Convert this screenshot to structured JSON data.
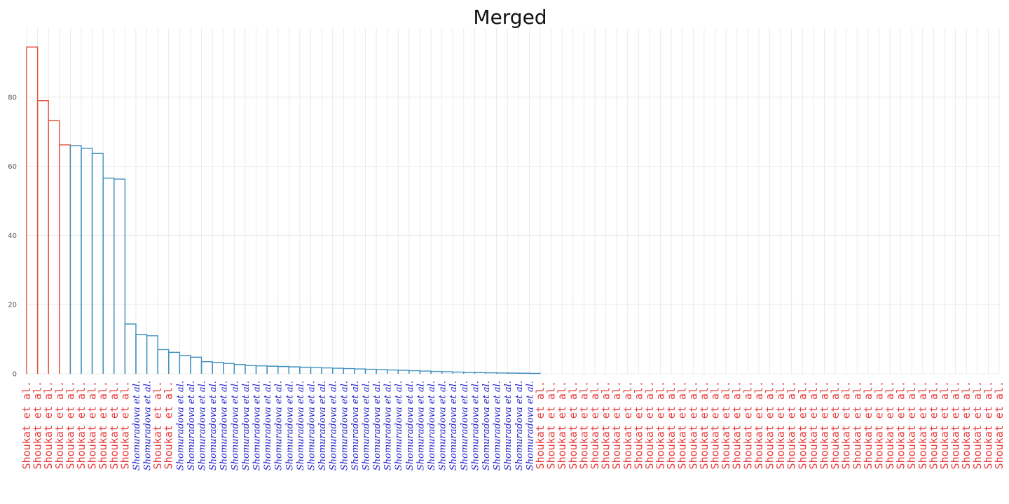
{
  "chart_data": {
    "type": "dendrogram",
    "title": "Merged",
    "y_ticks": [
      0,
      20,
      40,
      60,
      80
    ],
    "ylim": [
      0,
      100
    ],
    "grid": true,
    "colors": {
      "top_cluster": "#e0533f",
      "main_cluster": "#3f8fbf",
      "label_shoukat": "#e8393a",
      "label_shomuradova": "#1a1acc",
      "grid": "#e6e6e6"
    },
    "labels": {
      "shoukat": "Shoukat et al.",
      "shomuradova": "Shomuradova et al."
    },
    "leaves": [
      "Shoukat et al.",
      "Shoukat et al.",
      "Shoukat et al.",
      "Shoukat et al.",
      "Shoukat et al.",
      "Shoukat et al.",
      "Shoukat et al.",
      "Shoukat et al.",
      "Shoukat et al.",
      "Shoukat et al.",
      "Shomuradova et al.",
      "Shomuradova et al.",
      "Shoukat et al.",
      "Shoukat et al.",
      "Shomuradova et al.",
      "Shomuradova et al.",
      "Shomuradova et al.",
      "Shomuradova et al.",
      "Shomuradova et al.",
      "Shomuradova et al.",
      "Shomuradova et al.",
      "Shomuradova et al.",
      "Shomuradova et al.",
      "Shomuradova et al.",
      "Shomuradova et al.",
      "Shomuradova et al.",
      "Shomuradova et al.",
      "Shomuradova et al.",
      "Shomuradova et al.",
      "Shomuradova et al.",
      "Shomuradova et al.",
      "Shomuradova et al.",
      "Shomuradova et al.",
      "Shomuradova et al.",
      "Shomuradova et al.",
      "Shomuradova et al.",
      "Shomuradova et al.",
      "Shomuradova et al.",
      "Shomuradova et al.",
      "Shomuradova et al.",
      "Shomuradova et al.",
      "Shomuradova et al.",
      "Shomuradova et al.",
      "Shomuradova et al.",
      "Shomuradova et al.",
      "Shomuradova et al.",
      "Shomuradova et al.",
      "Shoukat et al.",
      "Shoukat et al.",
      "Shoukat et al.",
      "Shoukat et al.",
      "Shoukat et al.",
      "Shoukat et al.",
      "Shoukat et al.",
      "Shoukat et al.",
      "Shoukat et al.",
      "Shoukat et al.",
      "Shoukat et al.",
      "Shoukat et al.",
      "Shoukat et al.",
      "Shoukat et al.",
      "Shoukat et al.",
      "Shoukat et al.",
      "Shoukat et al.",
      "Shoukat et al.",
      "Shoukat et al.",
      "Shoukat et al.",
      "Shoukat et al.",
      "Shoukat et al.",
      "Shoukat et al.",
      "Shoukat et al.",
      "Shoukat et al.",
      "Shoukat et al.",
      "Shoukat et al.",
      "Shoukat et al.",
      "Shoukat et al.",
      "Shoukat et al.",
      "Shoukat et al.",
      "Shoukat et al.",
      "Shoukat et al.",
      "Shoukat et al.",
      "Shoukat et al.",
      "Shoukat et al.",
      "Shoukat et al.",
      "Shoukat et al.",
      "Shoukat et al.",
      "Shoukat et al.",
      "Shoukat et al.",
      "Shoukat et al.",
      "Shoukat et al."
    ],
    "merges": [
      {
        "l": 0,
        "r": 1,
        "h": 94.5,
        "c": "top"
      },
      {
        "l": 1,
        "r": 2,
        "h": 79.0,
        "c": "top"
      },
      {
        "l": 2,
        "r": 3,
        "h": 73.2,
        "c": "top"
      },
      {
        "l": 3,
        "r": 4,
        "h": 66.2,
        "c": "top"
      },
      {
        "l": 4,
        "r": 5,
        "h": 66.0,
        "c": "main"
      },
      {
        "l": 5,
        "r": 6,
        "h": 65.2,
        "c": "main"
      },
      {
        "l": 6,
        "r": 7,
        "h": 63.7,
        "c": "main"
      },
      {
        "l": 7,
        "r": 8,
        "h": 56.6,
        "c": "main"
      },
      {
        "l": 8,
        "r": 9,
        "h": 56.3,
        "c": "main"
      },
      {
        "l": 9,
        "r": 10,
        "h": 14.4,
        "c": "main"
      },
      {
        "l": 10,
        "r": 11,
        "h": 11.4,
        "c": "main"
      },
      {
        "l": 11,
        "r": 12,
        "h": 11.0,
        "c": "main"
      },
      {
        "l": 12,
        "r": 13,
        "h": 7.0,
        "c": "main"
      },
      {
        "l": 13,
        "r": 14,
        "h": 6.2,
        "c": "main"
      },
      {
        "l": 14,
        "r": 15,
        "h": 5.3,
        "c": "main"
      },
      {
        "l": 15,
        "r": 16,
        "h": 4.8,
        "c": "main"
      },
      {
        "l": 16,
        "r": 17,
        "h": 3.5,
        "c": "main"
      },
      {
        "l": 17,
        "r": 18,
        "h": 3.3,
        "c": "main"
      },
      {
        "l": 18,
        "r": 19,
        "h": 3.0,
        "c": "main"
      },
      {
        "l": 19,
        "r": 20,
        "h": 2.7,
        "c": "main"
      },
      {
        "l": 20,
        "r": 21,
        "h": 2.4,
        "c": "main"
      },
      {
        "l": 21,
        "r": 22,
        "h": 2.3,
        "c": "main"
      },
      {
        "l": 22,
        "r": 23,
        "h": 2.2,
        "c": "main"
      },
      {
        "l": 23,
        "r": 24,
        "h": 2.1,
        "c": "main"
      },
      {
        "l": 24,
        "r": 25,
        "h": 2.0,
        "c": "main"
      },
      {
        "l": 25,
        "r": 26,
        "h": 1.9,
        "c": "main"
      },
      {
        "l": 26,
        "r": 27,
        "h": 1.8,
        "c": "main"
      },
      {
        "l": 27,
        "r": 28,
        "h": 1.7,
        "c": "main"
      },
      {
        "l": 28,
        "r": 29,
        "h": 1.6,
        "c": "main"
      },
      {
        "l": 29,
        "r": 30,
        "h": 1.5,
        "c": "main"
      },
      {
        "l": 30,
        "r": 31,
        "h": 1.4,
        "c": "main"
      },
      {
        "l": 31,
        "r": 32,
        "h": 1.3,
        "c": "main"
      },
      {
        "l": 32,
        "r": 33,
        "h": 1.2,
        "c": "main"
      },
      {
        "l": 33,
        "r": 34,
        "h": 1.1,
        "c": "main"
      },
      {
        "l": 34,
        "r": 35,
        "h": 1.0,
        "c": "main"
      },
      {
        "l": 35,
        "r": 36,
        "h": 0.9,
        "c": "main"
      },
      {
        "l": 36,
        "r": 37,
        "h": 0.8,
        "c": "main"
      },
      {
        "l": 37,
        "r": 38,
        "h": 0.7,
        "c": "main"
      },
      {
        "l": 38,
        "r": 39,
        "h": 0.6,
        "c": "main"
      },
      {
        "l": 39,
        "r": 40,
        "h": 0.5,
        "c": "main"
      },
      {
        "l": 40,
        "r": 41,
        "h": 0.4,
        "c": "main"
      },
      {
        "l": 41,
        "r": 42,
        "h": 0.35,
        "c": "main"
      },
      {
        "l": 42,
        "r": 43,
        "h": 0.3,
        "c": "main"
      },
      {
        "l": 43,
        "r": 44,
        "h": 0.25,
        "c": "main"
      },
      {
        "l": 44,
        "r": 45,
        "h": 0.2,
        "c": "main"
      },
      {
        "l": 45,
        "r": 46,
        "h": 0.15,
        "c": "main"
      },
      {
        "l": 46,
        "r": 47,
        "h": 0.1,
        "c": "main"
      }
    ]
  }
}
